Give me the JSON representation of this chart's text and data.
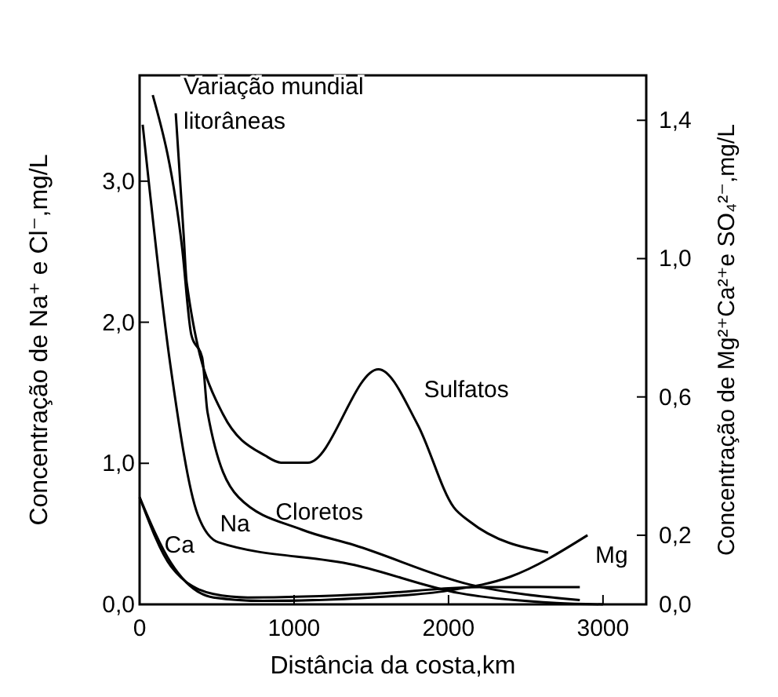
{
  "chart_data": {
    "type": "line",
    "xlabel": "Distância da costa,km",
    "ylabel": "Concentração de Na⁺ e Cl⁻,mg/L",
    "y2label": "Concentração de Mg²⁺Ca²⁺e SO₄²⁻,mg/L",
    "annotations": [
      "Variação mundial",
      "litorâneas"
    ],
    "xlim": [
      0,
      3280
    ],
    "xticks": [
      0,
      1000,
      2000,
      3000
    ],
    "ylim": [
      0,
      3.75
    ],
    "yticks": [
      {
        "value": 0,
        "label": "0,0"
      },
      {
        "value": 1,
        "label": "1,0"
      },
      {
        "value": 2,
        "label": "2,0"
      },
      {
        "value": 3,
        "label": "3,0"
      }
    ],
    "y2lim": [
      0,
      1.53
    ],
    "y2ticks": [
      {
        "value": 0,
        "label": "0,0"
      },
      {
        "value": 0.2,
        "label": "0,2"
      },
      {
        "value": 0.6,
        "label": "0,6"
      },
      {
        "value": 1.0,
        "label": "1,0"
      },
      {
        "value": 1.4,
        "label": "1,4"
      }
    ],
    "marker": "none",
    "line_style": "solid",
    "series": [
      {
        "name": "Sulfatos",
        "color": "#000000",
        "axis": "y2",
        "x": [
          234,
          285,
          305,
          540,
          814,
          915,
          1090,
          1546,
          1800,
          2035,
          2136,
          2645
        ],
        "values": [
          1.42,
          1.07,
          0.93,
          0.55,
          0.43,
          0.41,
          0.41,
          0.68,
          0.52,
          0.28,
          0.24,
          0.15
        ]
      },
      {
        "name": "Cloretos",
        "color": "#000000",
        "x": [
          85,
          275,
          335,
          405,
          440,
          640,
          1050,
          1390,
          2140,
          2850
        ],
        "values": [
          3.61,
          2.53,
          1.91,
          1.75,
          1.36,
          0.76,
          0.53,
          0.42,
          0.14,
          0.03
        ]
      },
      {
        "name": "Na",
        "color": "#000000",
        "x": [
          20,
          200,
          375,
          510,
          1390,
          2070,
          2700,
          3000
        ],
        "values": [
          3.4,
          1.69,
          0.64,
          0.44,
          0.28,
          0.08,
          0.01,
          0.0
        ]
      },
      {
        "name": "Ca",
        "color": "#000000",
        "axis": "y2",
        "x": [
          0,
          203,
          478,
          700,
          1500,
          2200,
          2850
        ],
        "values": [
          0.31,
          0.11,
          0.03,
          0.02,
          0.03,
          0.05,
          0.05
        ]
      },
      {
        "name": "Mg",
        "color": "#000000",
        "axis": "y2",
        "x": [
          0,
          203,
          478,
          800,
          1500,
          2000,
          2400,
          2900
        ],
        "values": [
          0.31,
          0.12,
          0.02,
          0.01,
          0.02,
          0.04,
          0.08,
          0.2
        ]
      }
    ]
  }
}
